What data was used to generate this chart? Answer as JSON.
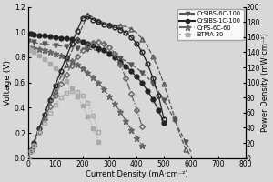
{
  "xlabel": "Current Density (mA·cm⁻²)",
  "ylabel_left": "Voltage (V)",
  "ylabel_right": "Power Density (mW·cm⁻²)",
  "xlim": [
    0,
    800
  ],
  "ylim_left": [
    0.0,
    1.2
  ],
  "ylim_right": [
    0,
    200
  ],
  "xticks": [
    0,
    100,
    200,
    300,
    400,
    500,
    600,
    700,
    800
  ],
  "yticks_left": [
    0.0,
    0.2,
    0.4,
    0.6,
    0.8,
    1.0,
    1.2
  ],
  "yticks_right": [
    0,
    20,
    40,
    60,
    80,
    100,
    120,
    140,
    160,
    180,
    200
  ],
  "series": [
    {
      "label": "CrSIBS-6C-100",
      "pol_x": [
        0,
        10,
        20,
        40,
        60,
        80,
        100,
        120,
        140,
        160,
        180,
        200,
        220,
        240,
        260,
        280,
        300,
        320,
        340,
        360,
        380,
        400,
        420,
        440,
        460,
        480,
        500,
        520,
        540,
        560,
        580,
        600
      ],
      "pol_y": [
        0.93,
        0.925,
        0.92,
        0.91,
        0.905,
        0.9,
        0.895,
        0.89,
        0.885,
        0.88,
        0.875,
        0.87,
        0.865,
        0.86,
        0.855,
        0.845,
        0.83,
        0.815,
        0.795,
        0.77,
        0.745,
        0.715,
        0.68,
        0.64,
        0.59,
        0.53,
        0.46,
        0.38,
        0.3,
        0.21,
        0.13,
        0.05
      ],
      "pow_x": [
        0,
        10,
        20,
        40,
        60,
        80,
        100,
        120,
        140,
        160,
        180,
        200,
        220,
        240,
        260,
        280,
        300,
        320,
        340,
        360,
        380,
        400,
        420,
        440,
        460,
        480,
        500,
        520,
        540,
        560,
        580,
        600
      ],
      "pow_y": [
        0,
        9,
        18,
        36,
        54,
        72,
        89,
        107,
        124,
        141,
        157,
        174,
        190,
        186,
        182,
        179,
        177,
        176,
        175,
        174,
        171,
        166,
        158,
        148,
        134,
        118,
        98,
        76,
        53,
        30,
        12,
        3
      ],
      "color": "#555555",
      "pol_marker": "v",
      "pow_marker": "^",
      "linestyle": "--"
    },
    {
      "label": "CrSIBS-1C-100",
      "pol_x": [
        0,
        10,
        20,
        40,
        60,
        80,
        100,
        120,
        140,
        160,
        180,
        200,
        220,
        240,
        260,
        280,
        300,
        320,
        340,
        360,
        380,
        400,
        420,
        440,
        460,
        480,
        500
      ],
      "pol_y": [
        0.99,
        0.985,
        0.98,
        0.975,
        0.97,
        0.965,
        0.96,
        0.955,
        0.95,
        0.945,
        0.935,
        0.925,
        0.91,
        0.895,
        0.875,
        0.855,
        0.83,
        0.8,
        0.765,
        0.73,
        0.69,
        0.645,
        0.595,
        0.535,
        0.465,
        0.38,
        0.28
      ],
      "pow_x": [
        0,
        10,
        20,
        40,
        60,
        80,
        100,
        120,
        140,
        160,
        180,
        200,
        220,
        240,
        260,
        280,
        300,
        320,
        340,
        360,
        380,
        400,
        420,
        440,
        460,
        480,
        500
      ],
      "pow_y": [
        0,
        10,
        20,
        39,
        58,
        77,
        96,
        115,
        133,
        151,
        168,
        185,
        187,
        183,
        180,
        177,
        175,
        173,
        170,
        166,
        160,
        152,
        140,
        125,
        106,
        83,
        52
      ],
      "color": "#222222",
      "pol_marker": "o",
      "pow_marker": "o",
      "linestyle": "-"
    },
    {
      "label": "CrPS-6C-60",
      "pol_x": [
        0,
        10,
        20,
        40,
        60,
        80,
        100,
        120,
        140,
        160,
        180,
        200,
        220,
        240,
        260,
        280,
        300,
        320,
        340,
        360,
        380,
        400,
        420
      ],
      "pol_y": [
        0.88,
        0.875,
        0.87,
        0.865,
        0.855,
        0.845,
        0.83,
        0.815,
        0.795,
        0.77,
        0.745,
        0.715,
        0.68,
        0.64,
        0.595,
        0.545,
        0.49,
        0.43,
        0.365,
        0.295,
        0.225,
        0.16,
        0.1
      ],
      "pow_x": [
        0,
        10,
        20,
        40,
        60,
        80,
        100,
        120,
        140,
        160,
        180,
        200,
        220,
        240,
        260,
        280,
        300,
        320,
        340,
        360,
        380,
        400,
        420
      ],
      "pow_y": [
        0,
        9,
        17,
        35,
        51,
        68,
        83,
        98,
        111,
        123,
        134,
        143,
        149,
        153,
        154,
        152,
        147,
        138,
        124,
        106,
        85,
        64,
        42
      ],
      "color": "#666666",
      "pol_marker": "*",
      "pow_marker": "D",
      "linestyle": "-."
    },
    {
      "label": "BTMA-30",
      "pol_x": [
        0,
        10,
        20,
        40,
        60,
        80,
        100,
        120,
        140,
        160,
        180,
        200,
        220,
        240,
        260
      ],
      "pol_y": [
        0.87,
        0.855,
        0.84,
        0.815,
        0.785,
        0.75,
        0.71,
        0.665,
        0.615,
        0.555,
        0.49,
        0.415,
        0.33,
        0.235,
        0.13
      ],
      "pow_x": [
        0,
        10,
        20,
        40,
        60,
        80,
        100,
        120,
        140,
        160,
        180,
        200,
        220,
        240,
        260
      ],
      "pow_y": [
        0,
        9,
        17,
        33,
        47,
        60,
        71,
        80,
        86,
        89,
        88,
        83,
        73,
        56,
        34
      ],
      "color": "#aaaaaa",
      "pol_marker": "s",
      "pow_marker": "s",
      "linestyle": ":"
    }
  ],
  "bg_color": "#d8d8d8"
}
